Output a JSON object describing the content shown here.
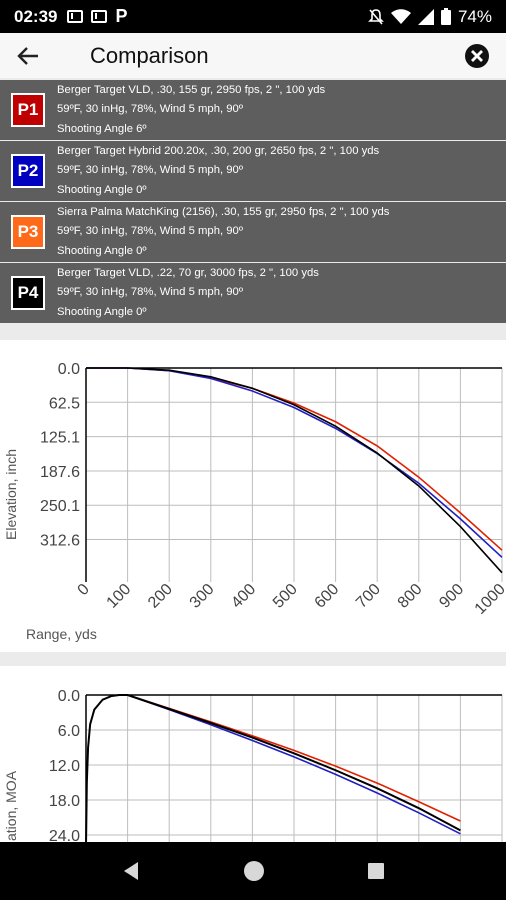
{
  "status": {
    "time": "02:39",
    "battery": "74%"
  },
  "header": {
    "title": "Comparison"
  },
  "profiles": [
    {
      "badge": "P1",
      "color": "#c00000",
      "line1": "Berger Target VLD, .30, 155 gr, 2950 fps, 2 \", 100 yds",
      "line2": "59ºF, 30 inHg, 78%, Wind 5 mph, 90º",
      "line3": "Shooting Angle 6º"
    },
    {
      "badge": "P2",
      "color": "#0000c0",
      "line1": "Berger Target Hybrid 200.20x, .30, 200 gr, 2650 fps, 2 \", 100 yds",
      "line2": "59ºF, 30 inHg, 78%, Wind 5 mph, 90º",
      "line3": "Shooting Angle 0º"
    },
    {
      "badge": "P3",
      "color": "#ff6a1a",
      "line1": "Sierra Palma MatchKing (2156), .30, 155 gr, 2950 fps, 2 \", 100 yds",
      "line2": "59ºF, 30 inHg, 78%, Wind 5 mph, 90º",
      "line3": "Shooting Angle 0º"
    },
    {
      "badge": "P4",
      "color": "#000000",
      "line1": "Berger Target VLD, .22, 70 gr, 3000 fps, 2 \", 100 yds",
      "line2": "59ºF, 30 inHg, 78%, Wind 5 mph, 90º",
      "line3": "Shooting Angle 0º"
    }
  ],
  "chart_data": [
    {
      "type": "line",
      "title": "",
      "xlabel": "Range, yds",
      "ylabel": "Elevation, inch",
      "x_ticks": [
        "0",
        "100",
        "200",
        "300",
        "400",
        "500",
        "600",
        "700",
        "800",
        "900",
        "1000"
      ],
      "y_ticks": [
        "0.0",
        "62.5",
        "125.1",
        "187.6",
        "250.1",
        "312.6"
      ],
      "xlim": [
        0,
        1000
      ],
      "ylim_inverted": [
        0,
        390
      ],
      "grid": true,
      "series": [
        {
          "color": "#e02000",
          "x": [
            0,
            100,
            200,
            300,
            400,
            500,
            600,
            700,
            800,
            900,
            1000
          ],
          "y": [
            0,
            0,
            5,
            18,
            37,
            64,
            98,
            142,
            199,
            264,
            332
          ]
        },
        {
          "color": "#2020c0",
          "x": [
            0,
            100,
            200,
            300,
            400,
            500,
            600,
            700,
            800,
            900,
            1000
          ],
          "y": [
            0,
            0,
            5,
            19,
            42,
            72,
            110,
            156,
            210,
            275,
            345
          ]
        },
        {
          "color": "#000000",
          "x": [
            0,
            100,
            200,
            300,
            400,
            500,
            600,
            700,
            800,
            900,
            1000
          ],
          "y": [
            0,
            0,
            4,
            16,
            37,
            67,
            106,
            155,
            215,
            289,
            373
          ]
        }
      ]
    },
    {
      "type": "line",
      "title": "",
      "xlabel": "",
      "ylabel": "ation, MOA",
      "y_ticks": [
        "0.0",
        "6.0",
        "12.0",
        "18.0",
        "24.0"
      ],
      "xlim": [
        0,
        1000
      ],
      "ylim_inverted": [
        0,
        26
      ],
      "grid": true,
      "series": [
        {
          "color": "#e02000",
          "x": [
            100,
            200,
            300,
            400,
            500,
            600,
            700,
            800,
            900
          ],
          "y": [
            0,
            2.3,
            4.6,
            7.0,
            9.5,
            12.2,
            15.1,
            18.3,
            21.6
          ]
        },
        {
          "color": "#2020c0",
          "x": [
            100,
            200,
            300,
            400,
            500,
            600,
            700,
            800,
            900
          ],
          "y": [
            0,
            2.5,
            5.1,
            7.8,
            10.6,
            13.6,
            16.8,
            20.2,
            23.8
          ]
        },
        {
          "color": "#000000",
          "x": [
            0,
            2,
            5,
            10,
            20,
            40,
            60,
            80,
            100,
            200,
            300,
            400,
            500,
            600,
            700,
            800,
            900
          ],
          "y": [
            26,
            15,
            9,
            5,
            2.5,
            0.8,
            0.2,
            0,
            0,
            2.4,
            4.8,
            7.3,
            10.0,
            12.9,
            16.0,
            19.4,
            23.2
          ]
        }
      ]
    }
  ]
}
